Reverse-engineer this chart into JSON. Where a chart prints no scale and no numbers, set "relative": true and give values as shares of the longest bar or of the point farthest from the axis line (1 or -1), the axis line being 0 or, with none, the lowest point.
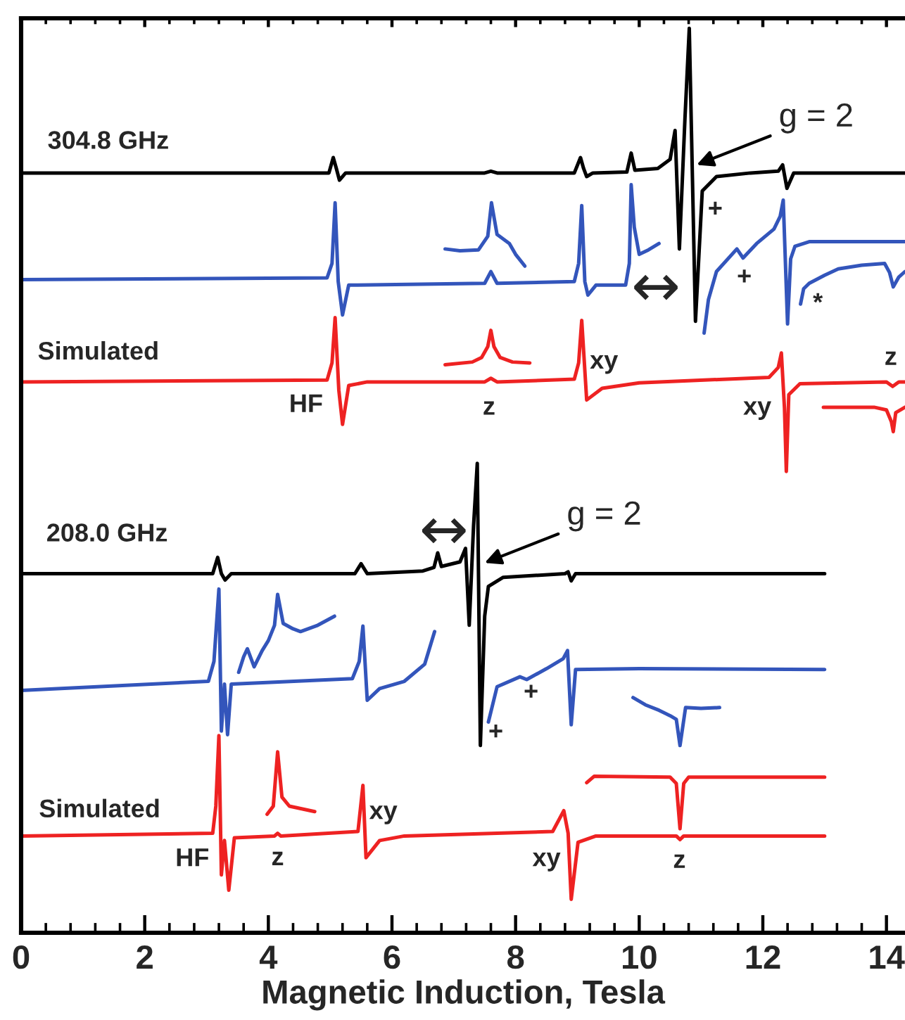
{
  "chart_data": {
    "type": "line",
    "relative": true,
    "xlabel": "Magnetic Induction, Tesla",
    "xlim": [
      0,
      14.3
    ],
    "xticks": [
      0,
      {
        "value": 0.4,
        "label": null
      },
      {
        "value": 0.8,
        "label": null
      },
      {
        "value": 1.2,
        "label": null
      },
      {
        "value": 1.6,
        "label": null
      },
      2,
      {
        "value": 2.4,
        "label": null
      },
      {
        "value": 2.8,
        "label": null
      },
      {
        "value": 3.2,
        "label": null
      },
      {
        "value": 3.6,
        "label": null
      },
      4,
      {
        "value": 4.4,
        "label": null
      },
      {
        "value": 4.8,
        "label": null
      },
      {
        "value": 5.2,
        "label": null
      },
      {
        "value": 5.6,
        "label": null
      },
      6,
      {
        "value": 6.4,
        "label": null
      },
      {
        "value": 6.8,
        "label": null
      },
      {
        "value": 7.2,
        "label": null
      },
      {
        "value": 7.6,
        "label": null
      },
      8,
      {
        "value": 8.4,
        "label": null
      },
      {
        "value": 8.8,
        "label": null
      },
      {
        "value": 9.2,
        "label": null
      },
      {
        "value": 9.6,
        "label": null
      },
      10,
      {
        "value": 10.4,
        "label": null
      },
      {
        "value": 10.8,
        "label": null
      },
      {
        "value": 11.2,
        "label": null
      },
      {
        "value": 11.6,
        "label": null
      },
      12,
      {
        "value": 12.4,
        "label": null
      },
      {
        "value": 12.8,
        "label": null
      },
      {
        "value": 13.2,
        "label": null
      },
      {
        "value": 13.6,
        "label": null
      },
      14
    ],
    "tick_labels": "x",
    "grid": false,
    "legend": false,
    "marker": "none",
    "line_style": "solid",
    "series": [
      {
        "color": "#000000",
        "x": [
          0,
          4.98,
          5.05,
          5.1,
          5.15,
          5.25,
          7.5,
          7.6,
          7.7,
          8.95,
          9.05,
          9.1,
          9.15,
          9.25,
          9.8,
          9.87,
          9.93,
          10.3,
          10.5,
          10.58,
          10.65,
          10.74,
          10.81,
          10.91,
          11.02,
          11.25,
          11.8,
          12.25,
          12.32,
          12.39,
          12.5,
          14.3
        ],
        "values": [
          0.84,
          0.84,
          0.857,
          0.845,
          0.832,
          0.84,
          0.84,
          0.842,
          0.84,
          0.84,
          0.857,
          0.845,
          0.836,
          0.84,
          0.841,
          0.862,
          0.843,
          0.845,
          0.855,
          0.887,
          0.756,
          0.9,
          1.0,
          0.676,
          0.82,
          0.836,
          0.84,
          0.842,
          0.849,
          0.823,
          0.84,
          0.84
        ]
      },
      {
        "color": "#3355bb",
        "x": [
          0,
          4.95,
          5.03,
          5.08,
          5.13,
          5.2,
          5.3,
          7.5,
          7.6,
          7.7,
          8.95,
          9.02,
          9.07,
          9.12,
          9.17,
          9.3,
          9.78,
          9.84,
          9.87,
          9.92,
          10.0,
          10.15,
          10.32,
          10.6,
          11.05,
          11.12,
          11.25,
          11.58,
          11.68,
          11.9,
          12.18,
          12.28,
          12.33,
          12.4,
          12.45,
          12.52,
          12.75,
          14.3
        ],
        "values": [
          0.722,
          0.724,
          0.74,
          0.807,
          0.72,
          0.683,
          0.716,
          0.718,
          0.731,
          0.718,
          0.72,
          0.74,
          0.804,
          0.72,
          0.705,
          0.716,
          0.716,
          0.74,
          0.827,
          0.78,
          0.75,
          0.755,
          0.762,
          null,
          0.663,
          0.7,
          0.731,
          0.756,
          0.746,
          0.762,
          0.778,
          0.792,
          0.81,
          0.673,
          0.745,
          0.759,
          0.764,
          0.764
        ]
      },
      {
        "color": "#3355bb",
        "x": [
          6.86,
          7.1,
          7.4,
          7.55,
          7.61,
          7.7,
          7.9,
          8.0,
          8.15
        ],
        "values": [
          0.756,
          0.754,
          0.755,
          0.77,
          0.807,
          0.772,
          0.762,
          0.75,
          0.737
        ]
      },
      {
        "color": "#3355bb",
        "x": [
          12.61,
          12.66,
          12.75,
          13.0,
          13.22,
          13.6,
          13.97,
          14.05,
          14.11,
          14.2,
          14.3
        ],
        "values": [
          0.695,
          0.712,
          0.718,
          0.727,
          0.734,
          0.738,
          0.74,
          0.73,
          0.714,
          0.725,
          0.731
        ]
      },
      {
        "color": "#ee2222",
        "x": [
          0,
          4.95,
          5.03,
          5.08,
          5.14,
          5.2,
          5.3,
          5.6,
          7.5,
          7.6,
          7.7,
          8.95,
          9.02,
          9.07,
          9.15,
          9.4,
          10.0,
          12.1,
          12.25,
          12.3,
          12.35,
          12.38,
          12.42,
          12.6,
          14.0,
          14.1,
          14.2,
          14.3
        ],
        "values": [
          0.609,
          0.611,
          0.63,
          0.68,
          0.6,
          0.562,
          0.605,
          0.609,
          0.609,
          0.613,
          0.609,
          0.612,
          0.63,
          0.677,
          0.589,
          0.602,
          0.608,
          0.614,
          0.625,
          0.641,
          0.58,
          0.51,
          0.595,
          0.607,
          0.609,
          0.604,
          0.609,
          0.609
        ]
      },
      {
        "color": "#ee2222",
        "x": [
          6.86,
          7.3,
          7.45,
          7.55,
          7.6,
          7.65,
          7.75,
          7.95,
          8.23
        ],
        "values": [
          0.628,
          0.631,
          0.636,
          0.648,
          0.666,
          0.648,
          0.636,
          0.631,
          0.63
        ]
      },
      {
        "color": "#ee2222",
        "x": [
          12.98,
          13.8,
          14.0,
          14.08,
          14.11,
          14.15,
          14.3
        ],
        "values": [
          0.581,
          0.581,
          0.578,
          0.565,
          0.554,
          0.575,
          0.581
        ]
      },
      {
        "color": "#000000",
        "x": [
          0,
          3.1,
          3.18,
          3.24,
          3.3,
          3.4,
          5.4,
          5.5,
          5.6,
          6.5,
          6.68,
          6.74,
          6.8,
          7.1,
          7.19,
          7.25,
          7.32,
          7.38,
          7.43,
          7.5,
          7.56,
          7.8,
          8.8,
          8.85,
          8.9,
          8.97,
          13.0
        ],
        "values": [
          0.397,
          0.397,
          0.415,
          0.397,
          0.39,
          0.397,
          0.397,
          0.408,
          0.397,
          0.4,
          0.404,
          0.42,
          0.405,
          0.41,
          0.425,
          0.34,
          0.45,
          0.519,
          0.207,
          0.35,
          0.383,
          0.393,
          0.397,
          0.399,
          0.389,
          0.397,
          0.397
        ]
      },
      {
        "color": "#3355bb",
        "x": [
          0,
          3.03,
          3.12,
          3.2,
          3.24,
          3.29,
          3.34,
          3.4,
          4.1,
          5.36,
          5.47,
          5.53,
          5.6,
          5.8,
          6.2,
          6.53,
          6.69,
          7.1,
          7.56,
          7.7,
          8.07,
          8.18,
          8.5,
          8.77,
          8.84,
          8.9,
          8.97,
          10.0,
          13.0
        ],
        "values": [
          0.268,
          0.278,
          0.3,
          0.38,
          0.223,
          0.275,
          0.219,
          0.275,
          0.277,
          0.281,
          0.3,
          0.339,
          0.257,
          0.27,
          0.278,
          0.297,
          0.333,
          null,
          0.233,
          0.272,
          0.283,
          0.28,
          0.292,
          0.303,
          0.312,
          0.23,
          0.291,
          0.292,
          0.291
        ]
      },
      {
        "color": "#3355bb",
        "x": [
          3.52,
          3.6,
          3.66,
          3.77,
          3.9,
          4.0,
          4.1,
          4.15,
          4.24,
          4.4,
          4.52,
          4.8,
          5.07
        ],
        "values": [
          0.288,
          0.305,
          0.314,
          0.294,
          0.312,
          0.323,
          0.34,
          0.374,
          0.342,
          0.336,
          0.333,
          0.34,
          0.35
        ]
      },
      {
        "color": "#3355bb",
        "x": [
          9.9,
          10.1,
          10.32,
          10.5,
          10.6,
          10.66,
          10.75,
          11.0,
          11.3
        ],
        "values": [
          0.26,
          0.252,
          0.246,
          0.24,
          0.236,
          0.207,
          0.249,
          0.248,
          0.249
        ]
      },
      {
        "color": "#ee2222",
        "x": [
          0,
          3.1,
          3.15,
          3.2,
          3.24,
          3.29,
          3.36,
          3.45,
          4.1,
          4.15,
          4.2,
          5.45,
          5.53,
          5.58,
          5.8,
          6.2,
          8.6,
          8.78,
          8.85,
          8.9,
          9.01,
          9.3,
          10.6,
          10.66,
          10.72,
          13.0
        ],
        "values": [
          0.107,
          0.11,
          0.14,
          0.218,
          0.064,
          0.102,
          0.047,
          0.105,
          0.107,
          0.11,
          0.107,
          0.112,
          0.163,
          0.083,
          0.102,
          0.107,
          0.112,
          0.135,
          0.11,
          0.037,
          0.1,
          0.107,
          0.107,
          0.103,
          0.107,
          0.107
        ]
      },
      {
        "color": "#ee2222",
        "x": [
          3.98,
          4.08,
          4.15,
          4.22,
          4.34,
          4.75
        ],
        "values": [
          0.131,
          0.14,
          0.2,
          0.15,
          0.14,
          0.134
        ]
      },
      {
        "color": "#ee2222",
        "x": [
          9.15,
          9.27,
          10.5,
          10.6,
          10.66,
          10.72,
          10.8,
          13.0
        ],
        "values": [
          0.166,
          0.173,
          0.172,
          0.165,
          0.115,
          0.165,
          0.172,
          0.172
        ]
      }
    ],
    "annotations": [
      "304.8 GHz",
      {
        "text": "g = 2",
        "x": 10.93,
        "y": 0.849
      },
      "+",
      "+",
      "*",
      "↔",
      "Simulated",
      "HF",
      "z",
      "xy",
      "xy",
      "z",
      "208.0 GHz",
      "↔",
      {
        "text": "g = 2",
        "x": 7.5,
        "y": 0.409
      },
      "+",
      "+",
      "Simulated",
      "HF",
      "z",
      "xy",
      "xy",
      "z"
    ]
  }
}
